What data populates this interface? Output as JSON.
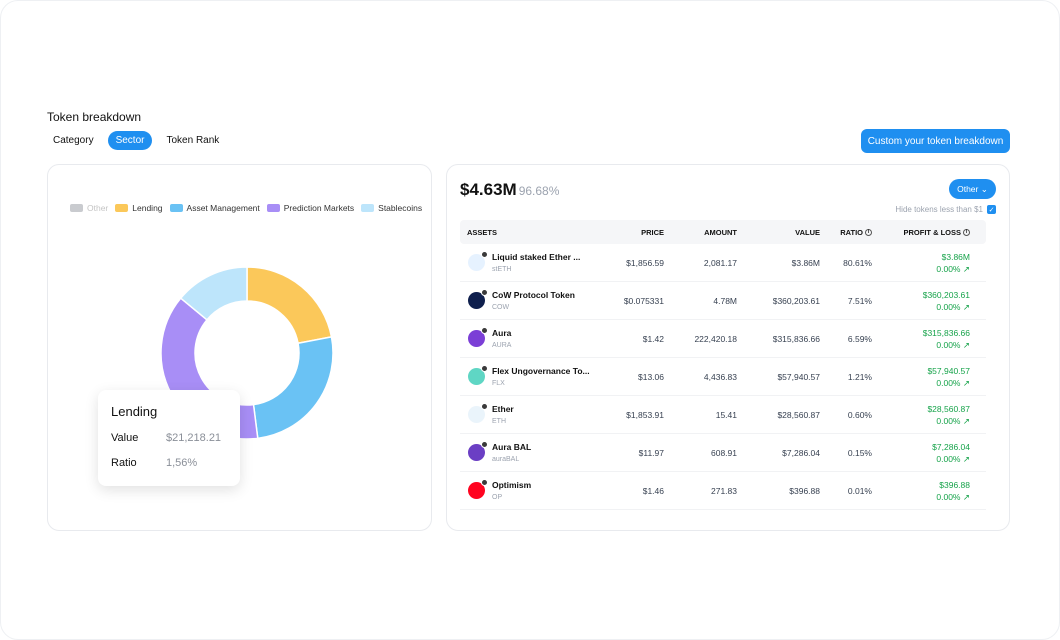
{
  "title": "Token breakdown",
  "tabs": [
    {
      "label": "Category"
    },
    {
      "label": "Sector"
    },
    {
      "label": "Token Rank"
    }
  ],
  "custom_button": "Custom your token breakdown",
  "legend": [
    {
      "label": "Other",
      "color": "#c9cbcf"
    },
    {
      "label": "Lending",
      "color": "#fbc85a"
    },
    {
      "label": "Asset Management",
      "color": "#6ac2f4"
    },
    {
      "label": "Prediction Markets",
      "color": "#a88ef6"
    },
    {
      "label": "Stablecoins",
      "color": "#bde5fb"
    }
  ],
  "tooltip": {
    "title": "Lending",
    "value_label": "Value",
    "value": "$21,218.21",
    "ratio_label": "Ratio",
    "ratio": "1,56%"
  },
  "summary": {
    "total": "$4.63M",
    "percent": "96.68%"
  },
  "filter": {
    "selected": "Other",
    "hide_label": "Hide tokens less than $1",
    "hide_checked": true
  },
  "table": {
    "headers": {
      "assets": "ASSETS",
      "price": "PRICE",
      "amount": "AMOUNT",
      "value": "VALUE",
      "ratio": "RATIO",
      "pl": "PROFIT & LOSS"
    },
    "rows": [
      {
        "name": "Liquid staked Ether ...",
        "symbol": "stETH",
        "price": "$1,856.59",
        "amount": "2,081.17",
        "value": "$3.86M",
        "ratio": "80.61%",
        "pl": "$3.86M",
        "pl_pct": "0.00%",
        "icon": "steth-icon",
        "icon_color": "#e6f2ff"
      },
      {
        "name": "CoW Protocol Token",
        "symbol": "COW",
        "price": "$0.075331",
        "amount": "4.78M",
        "value": "$360,203.61",
        "ratio": "7.51%",
        "pl": "$360,203.61",
        "pl_pct": "0.00%",
        "icon": "cow-icon",
        "icon_color": "#0f1f4d"
      },
      {
        "name": "Aura",
        "symbol": "AURA",
        "price": "$1.42",
        "amount": "222,420.18",
        "value": "$315,836.66",
        "ratio": "6.59%",
        "pl": "$315,836.66",
        "pl_pct": "0.00%",
        "icon": "aura-icon",
        "icon_color": "#7b3fd6"
      },
      {
        "name": "Flex Ungovernance To...",
        "symbol": "FLX",
        "price": "$13.06",
        "amount": "4,436.83",
        "value": "$57,940.57",
        "ratio": "1.21%",
        "pl": "$57,940.57",
        "pl_pct": "0.00%",
        "icon": "flx-icon",
        "icon_color": "#5fd6c4"
      },
      {
        "name": "Ether",
        "symbol": "ETH",
        "price": "$1,853.91",
        "amount": "15.41",
        "value": "$28,560.87",
        "ratio": "0.60%",
        "pl": "$28,560.87",
        "pl_pct": "0.00%",
        "icon": "ether-icon",
        "icon_color": "#eaf4fb"
      },
      {
        "name": "Aura BAL",
        "symbol": "auraBAL",
        "price": "$11.97",
        "amount": "608.91",
        "value": "$7,286.04",
        "ratio": "0.15%",
        "pl": "$7,286.04",
        "pl_pct": "0.00%",
        "icon": "aurabal-icon",
        "icon_color": "#6b3fc4"
      },
      {
        "name": "Optimism",
        "symbol": "OP",
        "price": "$1.46",
        "amount": "271.83",
        "value": "$396.88",
        "ratio": "0.01%",
        "pl": "$396.88",
        "pl_pct": "0.00%",
        "icon": "optimism-icon",
        "icon_color": "#ff0420"
      }
    ]
  },
  "donut": [
    {
      "sector": "Lending",
      "fraction": 0.22,
      "color": "#fbc85a"
    },
    {
      "sector": "Asset Management",
      "fraction": 0.26,
      "color": "#6ac2f4"
    },
    {
      "sector": "Prediction Markets",
      "fraction": 0.38,
      "color": "#a88ef6"
    },
    {
      "sector": "Stablecoins",
      "fraction": 0.14,
      "color": "#bde5fb"
    }
  ]
}
